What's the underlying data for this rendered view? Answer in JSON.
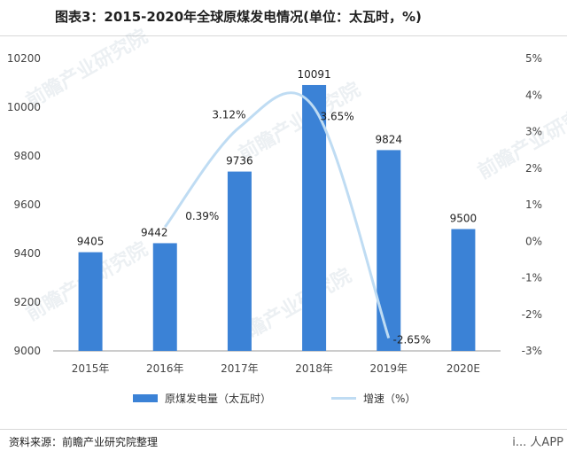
{
  "title": "图表3：2015-2020年全球原煤发电情况(单位：太瓦时，%)",
  "source": "资料来源：前瞻产业研究院整理",
  "watermark": "前瞻产业研究院",
  "corner_text": "i... 人APP",
  "colors": {
    "bar": "#3b82d6",
    "line": "#bfdcf3"
  },
  "chart_data": {
    "type": "bar",
    "categories": [
      "2015年",
      "2016年",
      "2017年",
      "2018年",
      "2019年",
      "2020E"
    ],
    "series": [
      {
        "name": "原煤发电量（太瓦时）",
        "type": "bar",
        "axis": "left",
        "values": [
          9405,
          9442,
          9736,
          10091,
          9824,
          9500
        ]
      },
      {
        "name": "增速（%）",
        "type": "line",
        "axis": "right",
        "values": [
          null,
          0.39,
          3.12,
          3.65,
          -2.65,
          null
        ],
        "labels": [
          "",
          "0.39%",
          "3.12%",
          "3.65%",
          "-2.65%",
          ""
        ]
      }
    ],
    "ylim": [
      9000,
      10200
    ],
    "yticks": [
      9000,
      9200,
      9400,
      9600,
      9800,
      10000,
      10200
    ],
    "y2lim": [
      -3,
      5
    ],
    "y2ticks": [
      "-3%",
      "-2%",
      "-1%",
      "0%",
      "1%",
      "2%",
      "3%",
      "4%",
      "5%"
    ],
    "legend_position": "bottom"
  }
}
